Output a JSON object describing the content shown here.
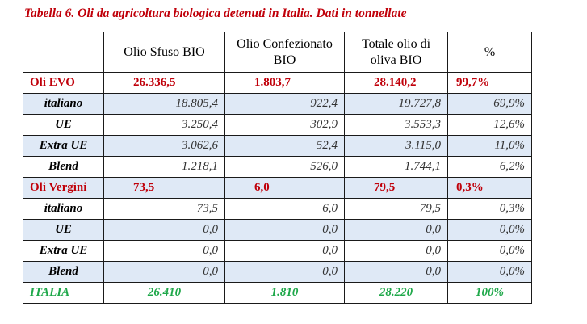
{
  "caption": "Tabella 6. Oli da agricoltura biologica detenuti in Italia. Dati in tonnellate",
  "headers": [
    "",
    "Olio Sfuso BIO",
    "Olio Confezionato BIO",
    "Totale olio di oliva BIO",
    "%"
  ],
  "groups": [
    {
      "label": "Oli EVO",
      "values": [
        "26.336,5",
        "1.803,7",
        "28.140,2",
        "99,7%"
      ],
      "rows": [
        {
          "label": "italiano",
          "values": [
            "18.805,4",
            "922,4",
            "19.727,8",
            "69,9%"
          ]
        },
        {
          "label": "UE",
          "values": [
            "3.250,4",
            "302,9",
            "3.553,3",
            "12,6%"
          ]
        },
        {
          "label": "Extra UE",
          "values": [
            "3.062,6",
            "52,4",
            "3.115,0",
            "11,0%"
          ]
        },
        {
          "label": "Blend",
          "values": [
            "1.218,1",
            "526,0",
            "1.744,1",
            "6,2%"
          ]
        }
      ]
    },
    {
      "label": "Oli Vergini",
      "values": [
        "73,5",
        "6,0",
        "79,5",
        "0,3%"
      ],
      "rows": [
        {
          "label": "italiano",
          "values": [
            "73,5",
            "6,0",
            "79,5",
            "0,3%"
          ]
        },
        {
          "label": "UE",
          "values": [
            "0,0",
            "0,0",
            "0,0",
            "0,0%"
          ]
        },
        {
          "label": "Extra UE",
          "values": [
            "0,0",
            "0,0",
            "0,0",
            "0,0%"
          ]
        },
        {
          "label": "Blend",
          "values": [
            "0,0",
            "0,0",
            "0,0",
            "0,0%"
          ]
        }
      ]
    }
  ],
  "total": {
    "label": "ITALIA",
    "values": [
      "26.410",
      "1.810",
      "28.220",
      "100%"
    ]
  },
  "colors": {
    "accent_red": "#c0000a",
    "total_green": "#1fa84a",
    "stripe_blue": "#dfe9f6"
  }
}
